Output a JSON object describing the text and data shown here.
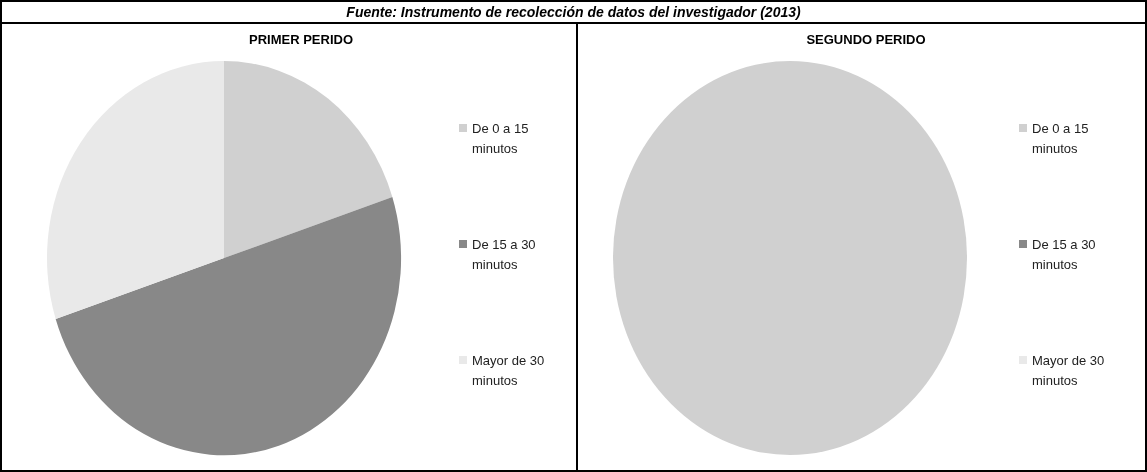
{
  "chart_data": [
    {
      "type": "pie",
      "title": "PRIMER PERIDO",
      "categories": [
        "De 0 a 15 minutos",
        "De 15 a 30 minutos",
        "Mayor de 30 minutos"
      ],
      "values": [
        20,
        50,
        30
      ],
      "colors": [
        "#d0d0d0",
        "#888888",
        "#e9e9e9"
      ],
      "legend": "right",
      "annotations": [
        "Fuente: Instrumento de recolección de datos del investigador (2013)"
      ]
    },
    {
      "type": "pie",
      "title": "SEGUNDO PERIDO",
      "categories": [
        "De 0 a 15 minutos",
        "De 15 a 30 minutos",
        "Mayor de 30 minutos"
      ],
      "values": [
        100,
        0,
        0
      ],
      "colors": [
        "#d0d0d0",
        "#888888",
        "#e9e9e9"
      ],
      "legend": "right"
    }
  ]
}
